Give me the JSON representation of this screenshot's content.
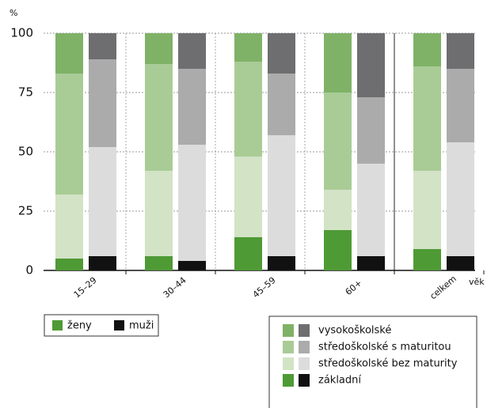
{
  "chart_data": {
    "type": "grouped_stacked_bar",
    "y_label": "%",
    "x_label": "věk",
    "categories": [
      "15–29",
      "30–44",
      "45–59",
      "60+",
      "celkem"
    ],
    "levels": [
      "základní",
      "středoškolské bez maturity",
      "středoškolské s maturitou",
      "vysokoškolské"
    ],
    "sexes": [
      {
        "name": "ženy",
        "colors": [
          "#4e9a35",
          "#d3e3c6",
          "#a9cc96",
          "#7fb267"
        ],
        "values": [
          [
            5,
            6,
            14,
            17,
            9
          ],
          [
            27,
            36,
            34,
            17,
            33
          ],
          [
            51,
            45,
            40,
            41,
            44
          ],
          [
            17,
            13,
            12,
            25,
            14
          ]
        ]
      },
      {
        "name": "muži",
        "colors": [
          "#111111",
          "#dcdcdc",
          "#ababab",
          "#6e6e70"
        ],
        "values": [
          [
            6,
            4,
            6,
            6,
            6
          ],
          [
            46,
            49,
            51,
            39,
            48
          ],
          [
            37,
            32,
            26,
            28,
            31
          ],
          [
            11,
            15,
            17,
            27,
            15
          ]
        ]
      }
    ],
    "ylim": [
      0,
      100
    ],
    "yticks": [
      0,
      25,
      50,
      75,
      100
    ],
    "grid": true
  }
}
